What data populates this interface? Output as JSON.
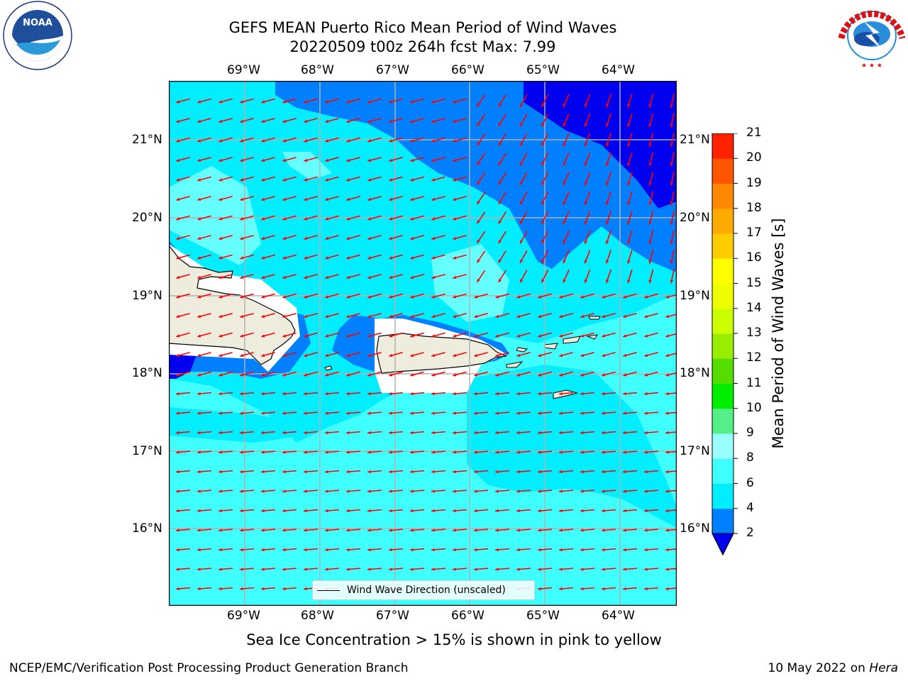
{
  "title_line1": "GEFS MEAN Puerto Rico Mean Period of Wind Waves",
  "title_line2": "20220509 t00z 264h fcst   Max: 7.99",
  "lon_labels": [
    "69°W",
    "68°W",
    "67°W",
    "66°W",
    "65°W",
    "64°W"
  ],
  "lat_labels": [
    "21°N",
    "20°N",
    "19°N",
    "18°N",
    "17°N",
    "16°N"
  ],
  "colorbar": {
    "title": "Mean Period of Wind Waves [s]",
    "ticks": [
      "2",
      "4",
      "6",
      "8",
      "9",
      "10",
      "11",
      "12",
      "13",
      "14",
      "15",
      "16",
      "17",
      "18",
      "19",
      "20",
      "21"
    ],
    "colors": [
      "#0000ee",
      "#0080ff",
      "#00eeff",
      "#40ffff",
      "#99ffff",
      "#55ee88",
      "#00ee00",
      "#55dd00",
      "#99ee00",
      "#ccff00",
      "#eeff00",
      "#ffff00",
      "#ffcc00",
      "#ffaa00",
      "#ff8800",
      "#ff5500",
      "#ff2200",
      "#ff0000"
    ],
    "extend_color": "#0000ee"
  },
  "legend_label": "Wind Wave Direction (unscaled)",
  "ice_note": "Sea Ice Concentration > 15% is shown in pink to yellow",
  "footer_left": "NCEP/EMC/Verification Post Processing Product Generation Branch",
  "footer_date": "10 May 2022 on ",
  "footer_machine": "Hera",
  "logos": {
    "left": "NOAA",
    "right": "NATIONAL WEATHER SERVICE"
  },
  "map_colors": {
    "land": "#eeecdc",
    "arrow": "#ff0000",
    "grid": "#b0b0b0"
  }
}
